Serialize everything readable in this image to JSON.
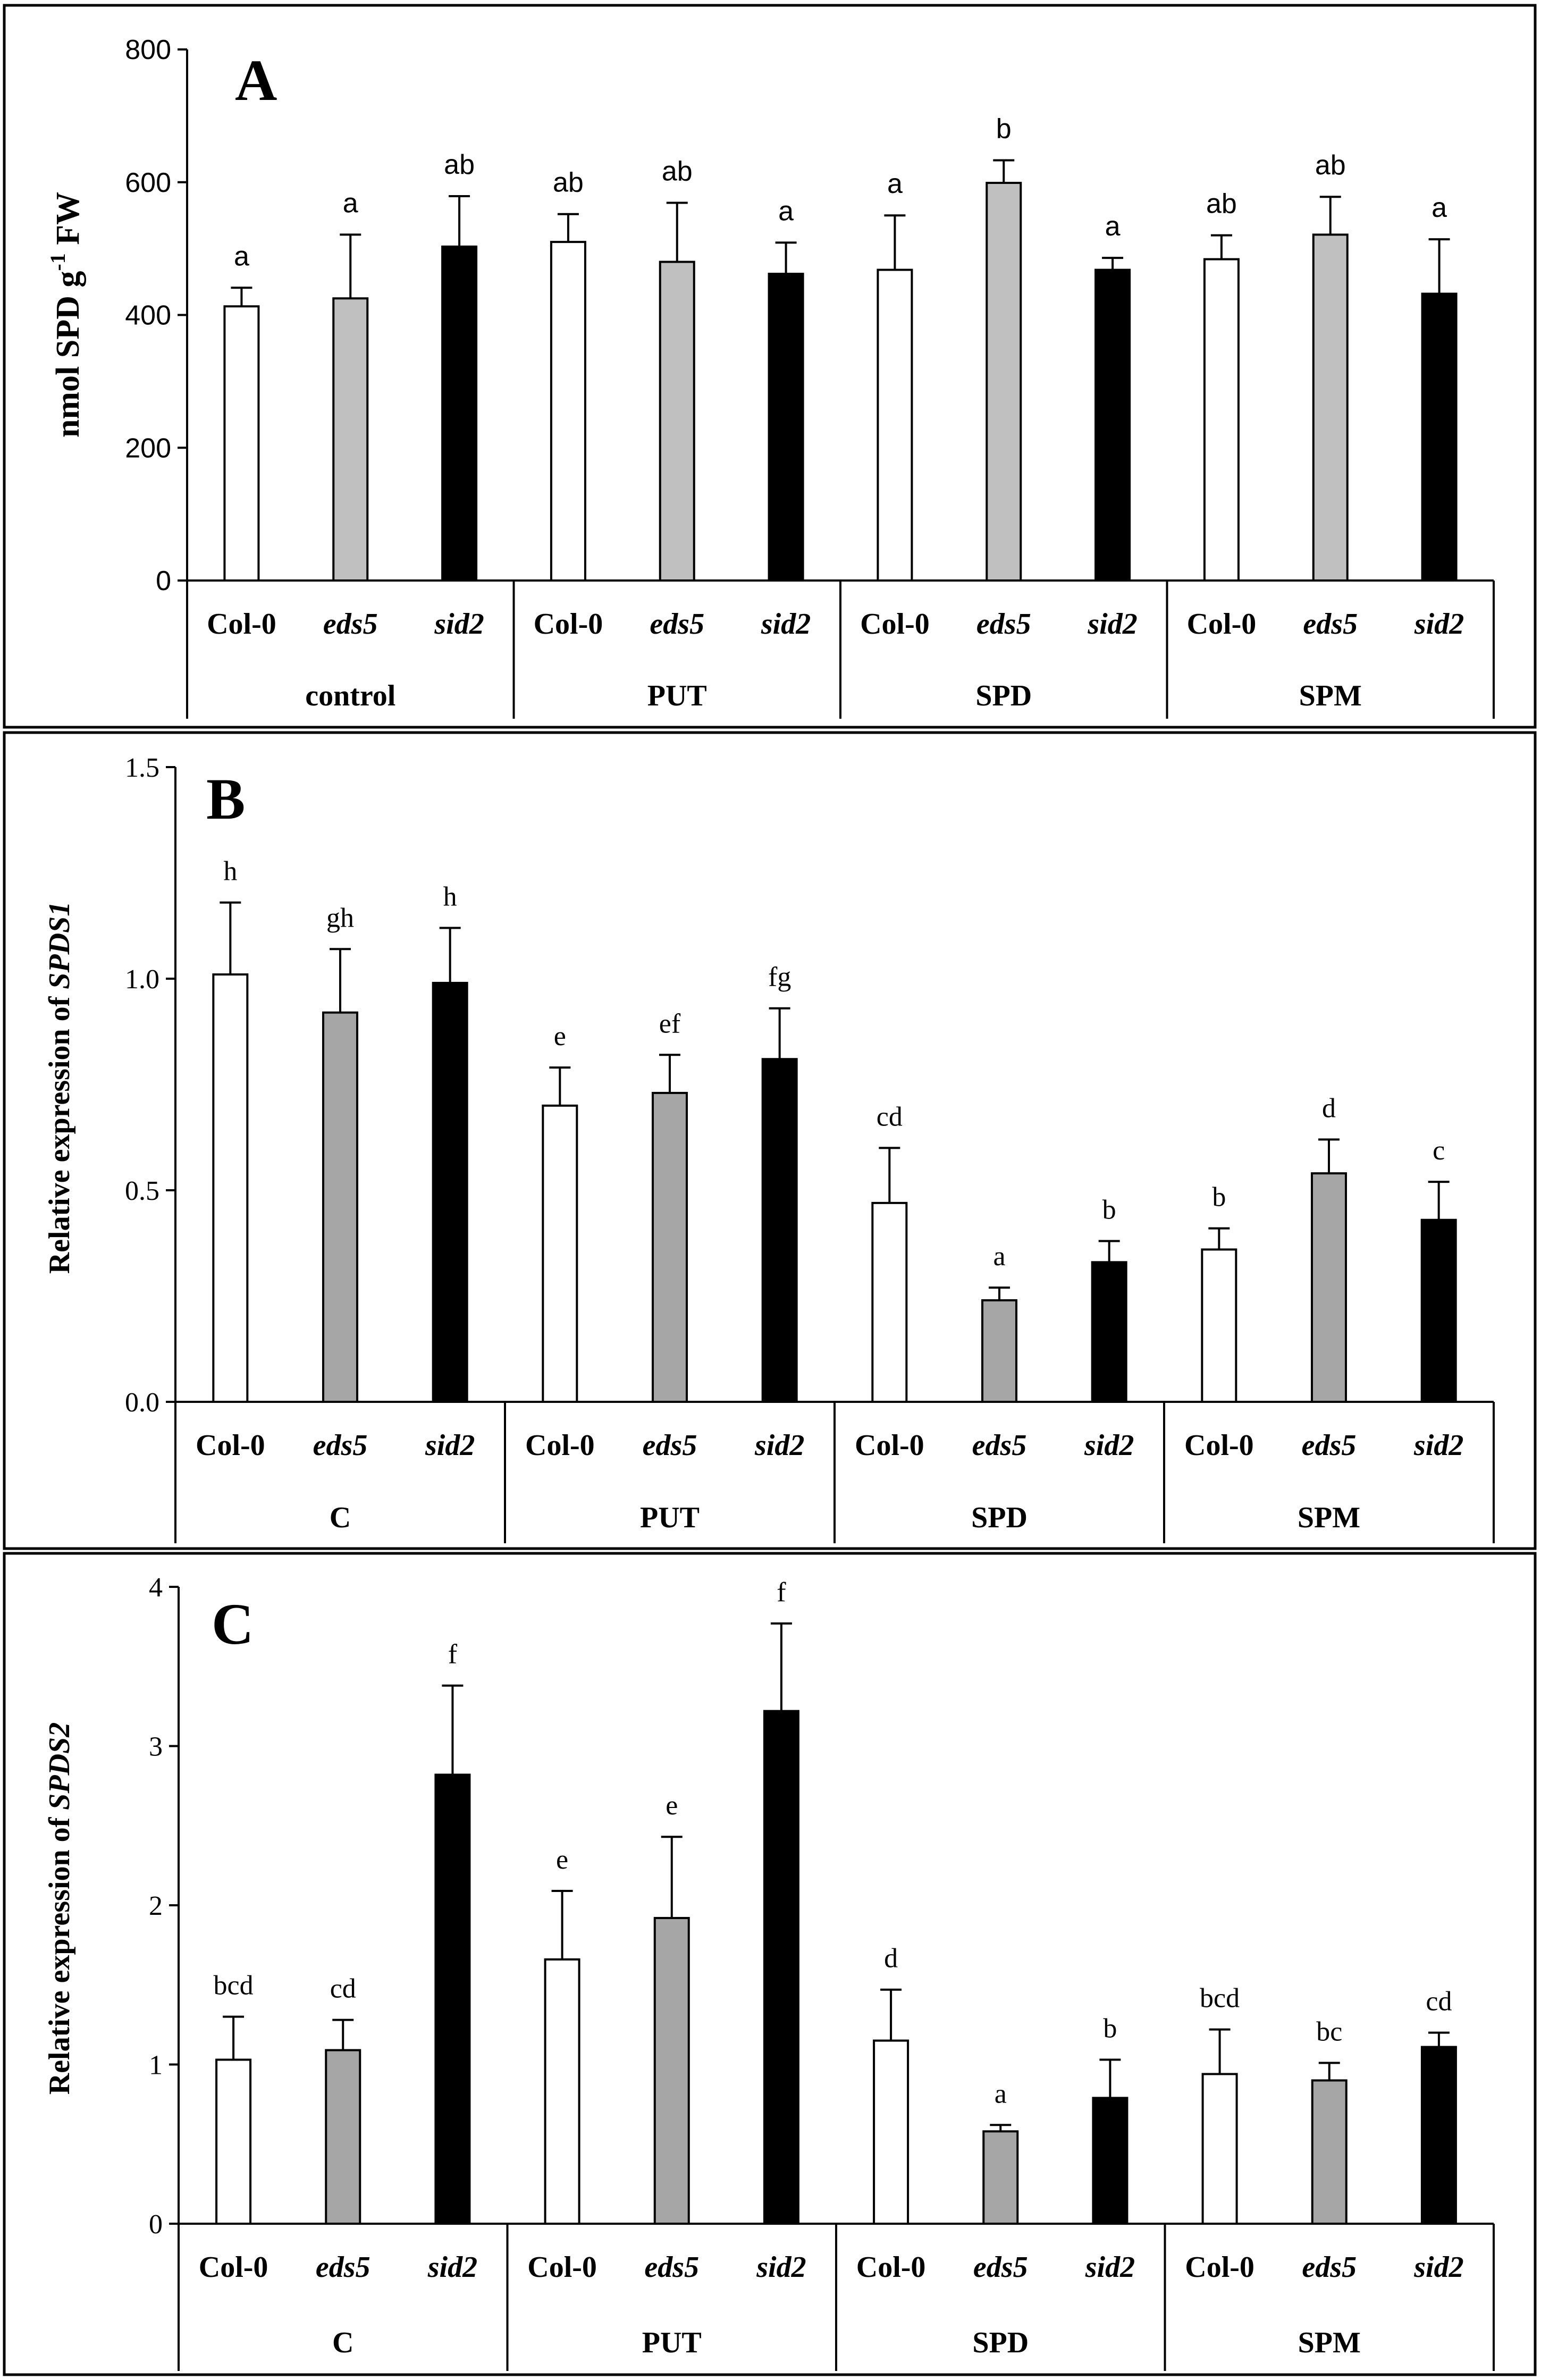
{
  "chart_data": [
    {
      "panel": "A",
      "type": "bar",
      "ylabel_parts": [
        "nmol SPD  g",
        "-1",
        " FW"
      ],
      "ylim": [
        0,
        800
      ],
      "yticks": [
        "0",
        "200",
        "400",
        "600",
        "800"
      ],
      "groups": [
        "control",
        "PUT",
        "SPD",
        "SPM"
      ],
      "genotypes": [
        "Col-0",
        "eds5",
        "sid2"
      ],
      "bar_colors": [
        "#ffffff",
        "#c0c0c0",
        "#000000"
      ],
      "values": [
        [
          413,
          425,
          503
        ],
        [
          510,
          480,
          462
        ],
        [
          468,
          599,
          468
        ],
        [
          484,
          521,
          432
        ]
      ],
      "errors": [
        [
          28,
          96,
          76
        ],
        [
          42,
          89,
          47
        ],
        [
          82,
          34,
          18
        ],
        [
          36,
          57,
          82
        ]
      ],
      "letters": [
        [
          "a",
          "a",
          "ab"
        ],
        [
          "ab",
          "ab",
          "a"
        ],
        [
          "a",
          "b",
          "a"
        ],
        [
          "ab",
          "ab",
          "a"
        ]
      ]
    },
    {
      "panel": "B",
      "type": "bar",
      "ylabel_parts": [
        "Relative expression of ",
        "SPDS1"
      ],
      "ylim": [
        0,
        1.5
      ],
      "yticks": [
        "0.0",
        "0.5",
        "1.0",
        "1.5"
      ],
      "groups": [
        "C",
        "PUT",
        "SPD",
        "SPM"
      ],
      "genotypes": [
        "Col-0",
        "eds5",
        "sid2"
      ],
      "bar_colors": [
        "#ffffff",
        "#a6a6a6",
        "#000000"
      ],
      "values": [
        [
          1.01,
          0.92,
          0.99
        ],
        [
          0.7,
          0.73,
          0.81
        ],
        [
          0.47,
          0.24,
          0.33
        ],
        [
          0.36,
          0.54,
          0.43
        ]
      ],
      "errors": [
        [
          0.17,
          0.15,
          0.13
        ],
        [
          0.09,
          0.09,
          0.12
        ],
        [
          0.13,
          0.03,
          0.05
        ],
        [
          0.05,
          0.08,
          0.09
        ]
      ],
      "letters": [
        [
          "h",
          "gh",
          "h"
        ],
        [
          "e",
          "ef",
          "fg"
        ],
        [
          "cd",
          "a",
          "b"
        ],
        [
          "b",
          "d",
          "c"
        ]
      ]
    },
    {
      "panel": "C",
      "type": "bar",
      "ylabel_parts": [
        "Relative expression of ",
        "SPDS2"
      ],
      "ylim": [
        0,
        4
      ],
      "yticks": [
        "0",
        "1",
        "2",
        "3",
        "4"
      ],
      "groups": [
        "C",
        "PUT",
        "SPD",
        "SPM"
      ],
      "genotypes": [
        "Col-0",
        "eds5",
        "sid2"
      ],
      "bar_colors": [
        "#ffffff",
        "#a6a6a6",
        "#000000"
      ],
      "values": [
        [
          1.03,
          1.09,
          2.82
        ],
        [
          1.66,
          1.92,
          3.22
        ],
        [
          1.15,
          0.58,
          0.79
        ],
        [
          0.94,
          0.9,
          1.11
        ]
      ],
      "errors": [
        [
          0.27,
          0.19,
          0.56
        ],
        [
          0.43,
          0.51,
          0.55
        ],
        [
          0.32,
          0.04,
          0.24
        ],
        [
          0.28,
          0.11,
          0.09
        ]
      ],
      "letters": [
        [
          "bcd",
          "cd",
          "f"
        ],
        [
          "e",
          "e",
          "f"
        ],
        [
          "d",
          "a",
          "b"
        ],
        [
          "bcd",
          "bc",
          "cd"
        ]
      ]
    }
  ]
}
